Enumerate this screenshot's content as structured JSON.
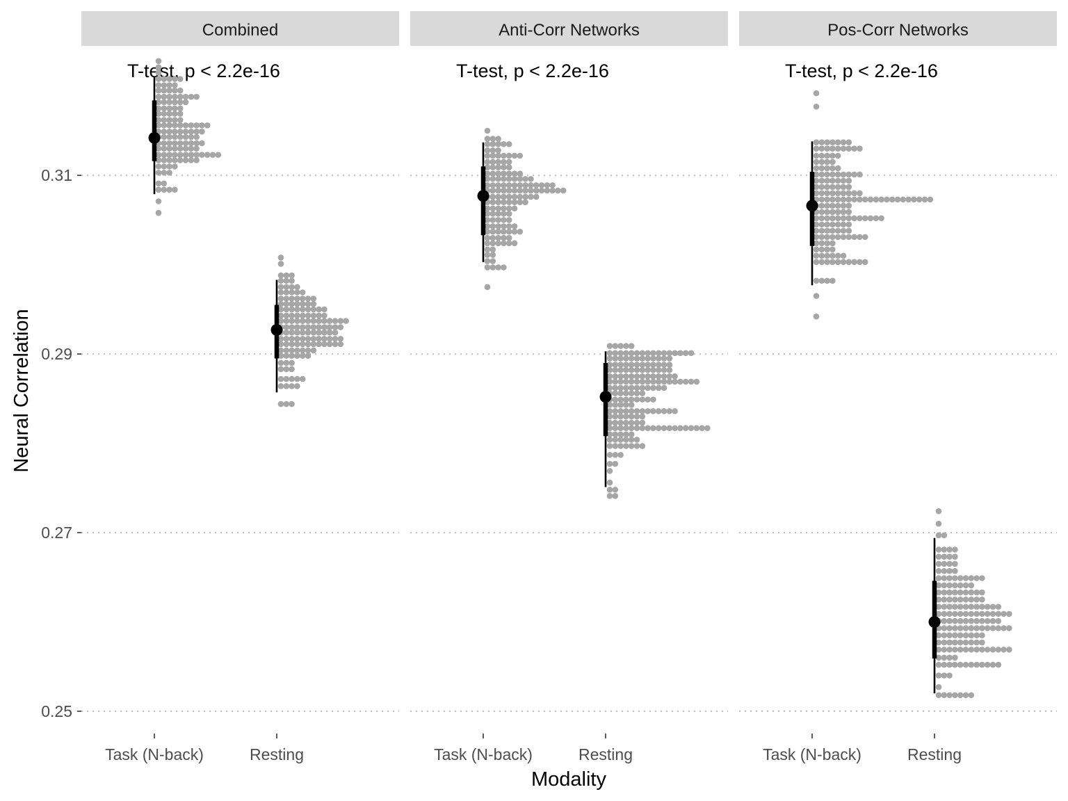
{
  "chart_data": {
    "type": "dotplot",
    "xlabel": "Modality",
    "ylabel": "Neural Correlation",
    "ylim": [
      0.2475,
      0.3245
    ],
    "yticks": [
      {
        "value": 0.25,
        "label": "0.25"
      },
      {
        "value": 0.27,
        "label": "0.27"
      },
      {
        "value": 0.29,
        "label": "0.29"
      },
      {
        "value": 0.31,
        "label": "0.31"
      }
    ],
    "categories": [
      "Task (N-back)",
      "Resting"
    ],
    "grid": "major horizontal, dotted",
    "colors": {
      "dots": "#a6a6a6",
      "interval": "#000000",
      "strip": "#d9d9d9",
      "grid": "#bdbdbd"
    },
    "panels": [
      {
        "name": "Combined",
        "annotation": "T-test, p < 2.2e-16",
        "groups": [
          {
            "category": "Task (N-back)",
            "point": 0.3142,
            "inner": [
              0.3116,
              0.3184
            ],
            "outer": [
              0.3079,
              0.3211
            ],
            "histogram": [
              [
                0.3058,
                1
              ],
              [
                0.3071,
                1
              ],
              [
                0.3084,
                4
              ],
              [
                0.3091,
                2
              ],
              [
                0.3103,
                3
              ],
              [
                0.311,
                4
              ],
              [
                0.3117,
                8
              ],
              [
                0.3123,
                12
              ],
              [
                0.313,
                8
              ],
              [
                0.3136,
                9
              ],
              [
                0.3143,
                8
              ],
              [
                0.3149,
                9
              ],
              [
                0.3156,
                10
              ],
              [
                0.3162,
                5
              ],
              [
                0.3169,
                5
              ],
              [
                0.3175,
                5
              ],
              [
                0.3182,
                6
              ],
              [
                0.3188,
                8
              ],
              [
                0.3195,
                5
              ],
              [
                0.3201,
                4
              ],
              [
                0.3208,
                5
              ],
              [
                0.3215,
                1
              ],
              [
                0.3221,
                1
              ],
              [
                0.3228,
                1
              ]
            ]
          },
          {
            "category": "Resting",
            "point": 0.2927,
            "inner": [
              0.2895,
              0.2955
            ],
            "outer": [
              0.2857,
              0.2983
            ],
            "histogram": [
              [
                0.2844,
                3
              ],
              [
                0.2864,
                4
              ],
              [
                0.2872,
                5
              ],
              [
                0.2883,
                3
              ],
              [
                0.289,
                3
              ],
              [
                0.2898,
                6
              ],
              [
                0.2904,
                7
              ],
              [
                0.2911,
                12
              ],
              [
                0.2917,
                12
              ],
              [
                0.2924,
                11
              ],
              [
                0.293,
                12
              ],
              [
                0.2937,
                13
              ],
              [
                0.2943,
                9
              ],
              [
                0.295,
                9
              ],
              [
                0.2956,
                7
              ],
              [
                0.2962,
                7
              ],
              [
                0.2969,
                5
              ],
              [
                0.2975,
                4
              ],
              [
                0.2982,
                3
              ],
              [
                0.2988,
                3
              ],
              [
                0.3001,
                1
              ],
              [
                0.3008,
                1
              ]
            ]
          }
        ]
      },
      {
        "name": "Anti-Corr Networks",
        "annotation": "T-test, p < 2.2e-16",
        "groups": [
          {
            "category": "Task (N-back)",
            "point": 0.3077,
            "inner": [
              0.3033,
              0.311
            ],
            "outer": [
              0.3003,
              0.3137
            ],
            "histogram": [
              [
                0.2975,
                1
              ],
              [
                0.2997,
                4
              ],
              [
                0.3004,
                2
              ],
              [
                0.3011,
                2
              ],
              [
                0.3017,
                2
              ],
              [
                0.3024,
                6
              ],
              [
                0.303,
                5
              ],
              [
                0.3037,
                7
              ],
              [
                0.3043,
                6
              ],
              [
                0.305,
                5
              ],
              [
                0.3057,
                5
              ],
              [
                0.3063,
                6
              ],
              [
                0.307,
                8
              ],
              [
                0.3076,
                10
              ],
              [
                0.3083,
                15
              ],
              [
                0.3089,
                13
              ],
              [
                0.3096,
                9
              ],
              [
                0.3102,
                7
              ],
              [
                0.3109,
                5
              ],
              [
                0.3115,
                5
              ],
              [
                0.3122,
                7
              ],
              [
                0.3128,
                3
              ],
              [
                0.3135,
                5
              ],
              [
                0.3141,
                3
              ],
              [
                0.315,
                1
              ]
            ]
          },
          {
            "category": "Resting",
            "point": 0.2852,
            "inner": [
              0.2808,
              0.289
            ],
            "outer": [
              0.2751,
              0.2903
            ],
            "histogram": [
              [
                0.2741,
                2
              ],
              [
                0.2748,
                2
              ],
              [
                0.2756,
                1
              ],
              [
                0.2769,
                1
              ],
              [
                0.2777,
                2
              ],
              [
                0.2787,
                3
              ],
              [
                0.2797,
                7
              ],
              [
                0.2804,
                6
              ],
              [
                0.281,
                5
              ],
              [
                0.2817,
                19
              ],
              [
                0.2823,
                7
              ],
              [
                0.283,
                7
              ],
              [
                0.2836,
                13
              ],
              [
                0.2843,
                5
              ],
              [
                0.2849,
                9
              ],
              [
                0.2856,
                7
              ],
              [
                0.2862,
                11
              ],
              [
                0.2869,
                17
              ],
              [
                0.2875,
                13
              ],
              [
                0.2882,
                12
              ],
              [
                0.2888,
                12
              ],
              [
                0.2895,
                12
              ],
              [
                0.2901,
                16
              ],
              [
                0.2909,
                5
              ]
            ]
          }
        ]
      },
      {
        "name": "Pos-Corr Networks",
        "annotation": "T-test, p < 2.2e-16",
        "groups": [
          {
            "category": "Task (N-back)",
            "point": 0.3066,
            "inner": [
              0.3021,
              0.3104
            ],
            "outer": [
              0.2977,
              0.3138
            ],
            "histogram": [
              [
                0.2942,
                1
              ],
              [
                0.2965,
                1
              ],
              [
                0.2982,
                4
              ],
              [
                0.3003,
                10
              ],
              [
                0.301,
                6
              ],
              [
                0.3017,
                4
              ],
              [
                0.3024,
                4
              ],
              [
                0.3031,
                10
              ],
              [
                0.3038,
                7
              ],
              [
                0.3045,
                7
              ],
              [
                0.3052,
                13
              ],
              [
                0.3059,
                7
              ],
              [
                0.3066,
                7
              ],
              [
                0.3073,
                22
              ],
              [
                0.308,
                9
              ],
              [
                0.3087,
                7
              ],
              [
                0.3094,
                7
              ],
              [
                0.3101,
                9
              ],
              [
                0.3108,
                5
              ],
              [
                0.3115,
                4
              ],
              [
                0.3122,
                5
              ],
              [
                0.313,
                9
              ],
              [
                0.3137,
                7
              ],
              [
                0.3177,
                1
              ],
              [
                0.3192,
                1
              ]
            ]
          },
          {
            "category": "Resting",
            "point": 0.26,
            "inner": [
              0.2559,
              0.2646
            ],
            "outer": [
              0.252,
              0.2694
            ],
            "histogram": [
              [
                0.2518,
                7
              ],
              [
                0.2527,
                1
              ],
              [
                0.254,
                3
              ],
              [
                0.2552,
                12
              ],
              [
                0.256,
                4
              ],
              [
                0.2569,
                14
              ],
              [
                0.2577,
                9
              ],
              [
                0.2585,
                9
              ],
              [
                0.2593,
                14
              ],
              [
                0.2601,
                12
              ],
              [
                0.2609,
                14
              ],
              [
                0.2617,
                12
              ],
              [
                0.2625,
                9
              ],
              [
                0.2633,
                9
              ],
              [
                0.2641,
                7
              ],
              [
                0.2649,
                9
              ],
              [
                0.2657,
                4
              ],
              [
                0.2665,
                4
              ],
              [
                0.2673,
                4
              ],
              [
                0.2681,
                4
              ],
              [
                0.2697,
                2
              ],
              [
                0.271,
                1
              ],
              [
                0.2724,
                1
              ]
            ]
          }
        ]
      }
    ]
  }
}
